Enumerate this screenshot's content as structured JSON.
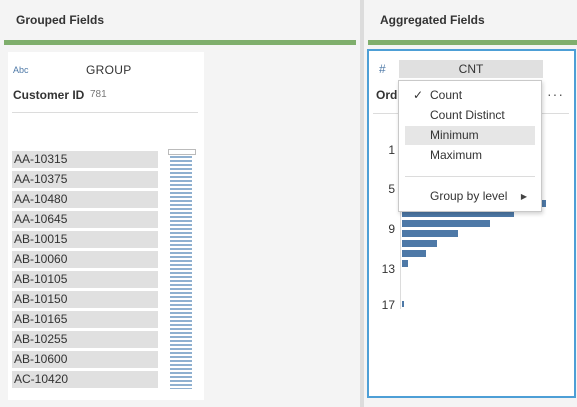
{
  "left_panel": {
    "title": "Grouped Fields",
    "card": {
      "type_icon_text": "Abc",
      "role": "GROUP",
      "field_name": "Customer ID",
      "distinct_count": "781",
      "values": [
        "AA-10315",
        "AA-10375",
        "AA-10480",
        "AA-10645",
        "AB-10015",
        "AB-10060",
        "AB-10105",
        "AB-10150",
        "AB-10165",
        "AB-10255",
        "AB-10600",
        "AC-10420"
      ]
    }
  },
  "right_panel": {
    "title": "Aggregated Fields",
    "card": {
      "type_icon": "hash-icon",
      "aggregation": "CNT",
      "field_name_truncated": "Ord",
      "more_icon": "ellipsis-icon",
      "axis_ticks": [
        "1",
        "5",
        "9",
        "13",
        "17"
      ],
      "histogram_bars": [
        0.3,
        0.55,
        0.45,
        0.9,
        0.7,
        0.55,
        0.35,
        0.22,
        0.15,
        0.04
      ]
    }
  },
  "menu": {
    "items": [
      {
        "label": "Count",
        "checked": true
      },
      {
        "label": "Count Distinct",
        "checked": false
      },
      {
        "label": "Minimum",
        "checked": false,
        "hovered": true
      },
      {
        "label": "Maximum",
        "checked": false
      }
    ],
    "submenu": {
      "label": "Group by level",
      "icon": "caret-right-icon"
    }
  },
  "colors": {
    "accent_green": "#7fae6c",
    "bar_blue": "#4e79a7",
    "focus_border": "#4d9fd6"
  }
}
